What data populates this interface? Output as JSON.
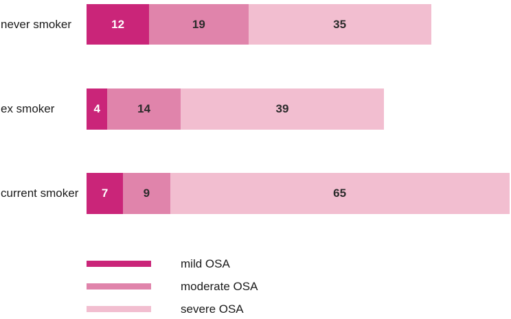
{
  "chart_data": {
    "type": "bar",
    "orientation": "horizontal",
    "stacked": true,
    "title": "",
    "xlabel": "",
    "ylabel": "",
    "axis_visible": false,
    "grid": false,
    "value_labels": "inside",
    "legend_position": "bottom-left",
    "categories": [
      "never smoker",
      "ex smoker",
      "current smoker"
    ],
    "series": [
      {
        "name": "mild OSA",
        "color": "#ca2579",
        "values": [
          12,
          4,
          7
        ]
      },
      {
        "name": "moderate OSA",
        "color": "#e084ab",
        "values": [
          19,
          14,
          9
        ]
      },
      {
        "name": "severe OSA",
        "color": "#f2bed0",
        "values": [
          35,
          39,
          65
        ]
      }
    ],
    "totals": [
      66,
      57,
      81
    ]
  },
  "colors": {
    "mild": "#ca2579",
    "moderate": "#e084ab",
    "severe": "#f2bed0",
    "label_text": "#1a1a1a",
    "value_text_on_dark": "#ffffff",
    "value_text_on_light": "#2b2b2b",
    "background": "#ffffff"
  }
}
